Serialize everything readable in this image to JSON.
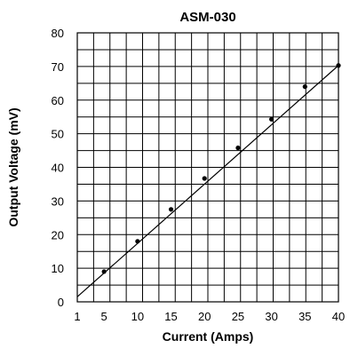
{
  "chart_data": {
    "type": "line",
    "title": "ASM-030",
    "xlabel": "Current  (Amps)",
    "ylabel": "Output Voltage  (mV)",
    "xlim": [
      1,
      40
    ],
    "ylim": [
      0,
      80
    ],
    "x_ticks": [
      "1",
      "5",
      "10",
      "15",
      "20",
      "25",
      "30",
      "35",
      "40"
    ],
    "y_ticks": [
      "0",
      "10",
      "20",
      "30",
      "40",
      "50",
      "60",
      "70",
      "80"
    ],
    "grid": true,
    "series": [
      {
        "x": [
          5,
          10,
          15,
          20,
          25,
          30,
          35,
          40
        ],
        "values": [
          9,
          18,
          27.5,
          36.7,
          45.8,
          54.3,
          64,
          70.3
        ],
        "marker": "dot"
      }
    ],
    "line_endpoints": {
      "x": [
        1,
        40
      ],
      "y": [
        1.5,
        70.3
      ]
    },
    "colors": {
      "line": "#000000",
      "grid": "#000000",
      "background": "#ffffff"
    }
  }
}
